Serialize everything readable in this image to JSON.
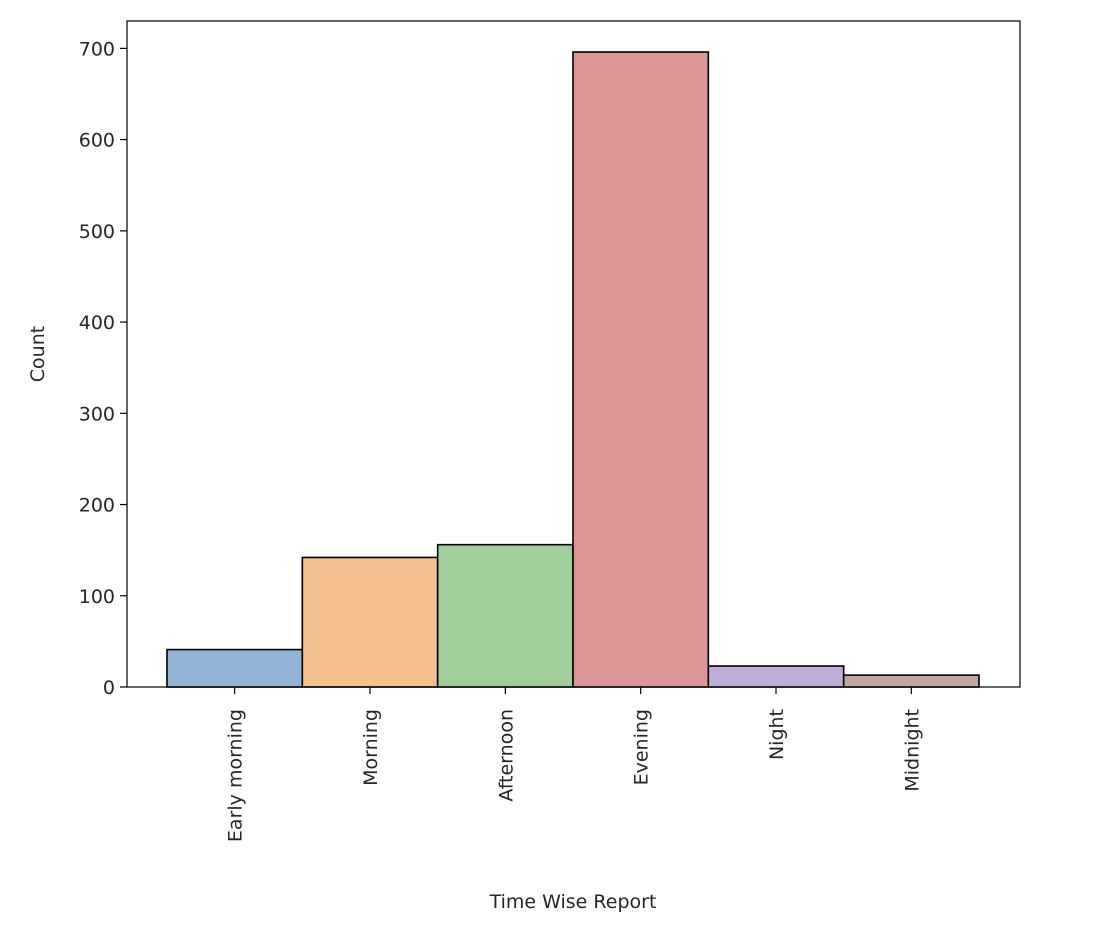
{
  "chart_data": {
    "type": "bar",
    "title": "",
    "xlabel": "Time Wise Report",
    "ylabel": "Count",
    "categories": [
      "Early morning",
      "Morning",
      "Afternoon",
      "Evening",
      "Night",
      "Midnight"
    ],
    "values": [
      41,
      142,
      156,
      696,
      23,
      13
    ],
    "colors": [
      "#92b4d6",
      "#f4c08e",
      "#a1cd9a",
      "#dc9595",
      "#c0aed8",
      "#c2a79f"
    ],
    "edge_color": "#000000",
    "ylim": [
      0,
      730
    ],
    "yticks": [
      0,
      100,
      200,
      300,
      400,
      500,
      600,
      700
    ],
    "ytick_labels": [
      "0",
      "100",
      "200",
      "300",
      "400",
      "500",
      "600",
      "700"
    ],
    "grid": false,
    "legend": "none"
  }
}
